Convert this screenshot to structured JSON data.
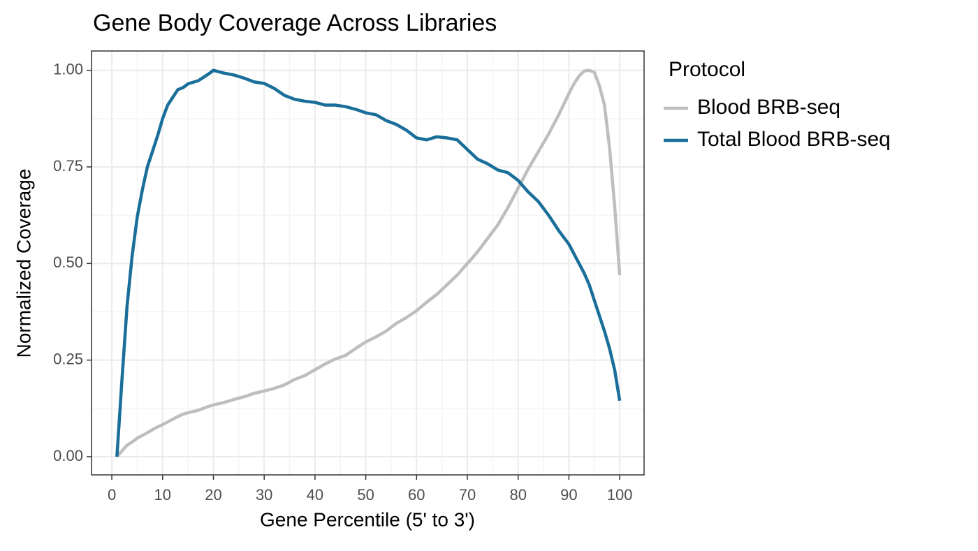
{
  "chart_data": {
    "type": "line",
    "title": "Gene Body Coverage Across Libraries",
    "x_label": "Gene Percentile (5' to 3')",
    "y_label": "Normalized Coverage",
    "legend_title": "Protocol",
    "legend": "right",
    "grid": true,
    "x": [
      1,
      2,
      3,
      4,
      5,
      6,
      7,
      8,
      9,
      10,
      11,
      12,
      13,
      14,
      15,
      17,
      19,
      20,
      22,
      24,
      26,
      28,
      30,
      32,
      34,
      36,
      38,
      40,
      42,
      44,
      46,
      48,
      50,
      52,
      54,
      56,
      58,
      60,
      62,
      64,
      66,
      68,
      70,
      72,
      74,
      76,
      78,
      80,
      82,
      84,
      86,
      88,
      90,
      91,
      92,
      93,
      94,
      95,
      96,
      97,
      98,
      99,
      100
    ],
    "series": [
      {
        "name": "Blood BRB-seq",
        "color": "#bebebe",
        "values": [
          0.0,
          0.015,
          0.03,
          0.038,
          0.048,
          0.055,
          0.062,
          0.07,
          0.077,
          0.083,
          0.09,
          0.097,
          0.104,
          0.11,
          0.114,
          0.12,
          0.13,
          0.134,
          0.14,
          0.148,
          0.155,
          0.164,
          0.17,
          0.177,
          0.186,
          0.2,
          0.21,
          0.225,
          0.24,
          0.253,
          0.262,
          0.28,
          0.297,
          0.31,
          0.325,
          0.345,
          0.36,
          0.378,
          0.4,
          0.42,
          0.445,
          0.47,
          0.5,
          0.53,
          0.565,
          0.6,
          0.645,
          0.695,
          0.745,
          0.79,
          0.835,
          0.885,
          0.94,
          0.965,
          0.985,
          0.998,
          1.0,
          0.995,
          0.96,
          0.91,
          0.8,
          0.65,
          0.47
        ]
      },
      {
        "name": "Total Blood BRB-seq",
        "color": "#1a6e9a",
        "values": [
          0.0,
          0.2,
          0.39,
          0.52,
          0.62,
          0.69,
          0.75,
          0.79,
          0.83,
          0.875,
          0.91,
          0.93,
          0.95,
          0.955,
          0.965,
          0.973,
          0.99,
          1.0,
          0.993,
          0.988,
          0.98,
          0.97,
          0.966,
          0.953,
          0.935,
          0.925,
          0.92,
          0.917,
          0.91,
          0.91,
          0.906,
          0.899,
          0.89,
          0.885,
          0.87,
          0.86,
          0.845,
          0.825,
          0.82,
          0.828,
          0.825,
          0.82,
          0.795,
          0.77,
          0.758,
          0.742,
          0.735,
          0.715,
          0.685,
          0.66,
          0.625,
          0.585,
          0.55,
          0.525,
          0.5,
          0.475,
          0.445,
          0.405,
          0.365,
          0.325,
          0.28,
          0.225,
          0.145
        ]
      }
    ],
    "xlim": [
      -4,
      104.8
    ],
    "xticks": [
      0,
      10,
      20,
      30,
      40,
      50,
      60,
      70,
      80,
      90,
      100
    ],
    "ylim": [
      -0.047,
      1.05
    ],
    "yticks": [
      {
        "value": 0,
        "label": "0.00"
      },
      {
        "value": 0.25,
        "label": "0.25"
      },
      {
        "value": 0.5,
        "label": "0.50"
      },
      {
        "value": 0.75,
        "label": "0.75"
      },
      {
        "value": 1,
        "label": "1.00"
      }
    ]
  }
}
